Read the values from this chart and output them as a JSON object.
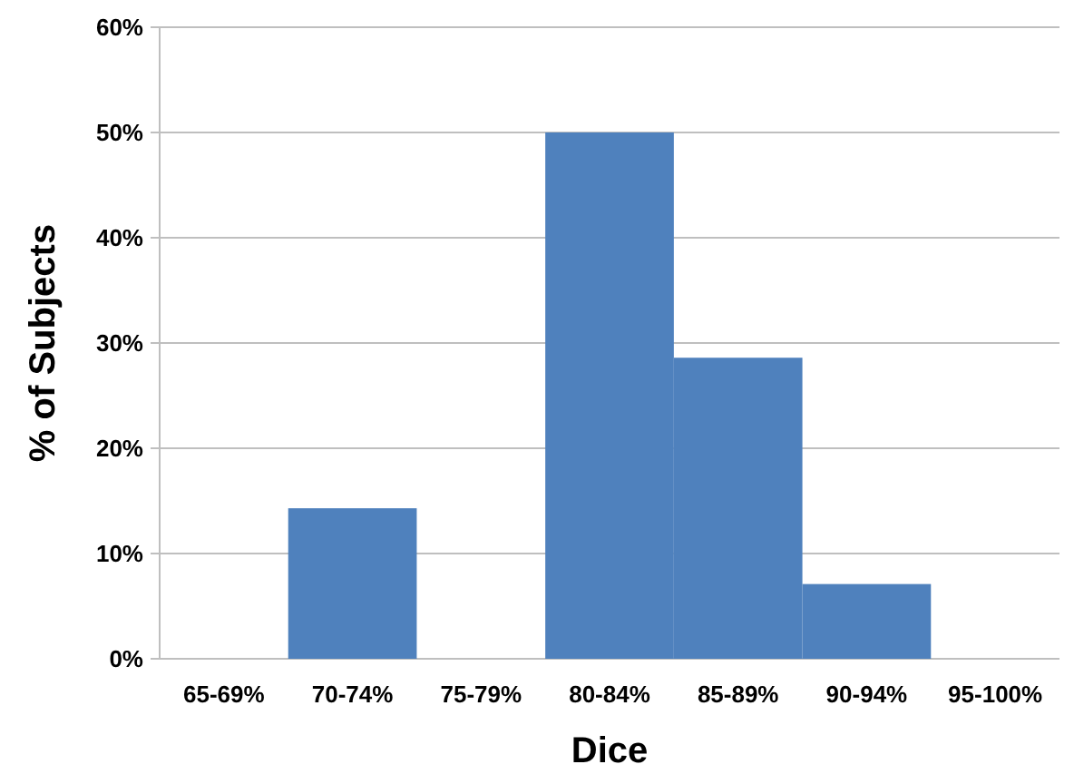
{
  "chart_data": {
    "type": "bar",
    "xlabel": "Dice",
    "ylabel": "% of Subjects",
    "categories": [
      "65-69%",
      "70-74%",
      "75-79%",
      "80-84%",
      "85-89%",
      "90-94%",
      "95-100%"
    ],
    "values": [
      0,
      14.3,
      0,
      50,
      28.6,
      7.1,
      0
    ],
    "color": "#4f81bd",
    "ylim": [
      0,
      60
    ],
    "yticks": [
      {
        "value": 0,
        "label": "0%"
      },
      {
        "value": 10,
        "label": "10%"
      },
      {
        "value": 20,
        "label": "20%"
      },
      {
        "value": 30,
        "label": "30%"
      },
      {
        "value": 40,
        "label": "40%"
      },
      {
        "value": 50,
        "label": "50%"
      },
      {
        "value": 60,
        "label": "60%"
      }
    ],
    "grid": "y"
  }
}
